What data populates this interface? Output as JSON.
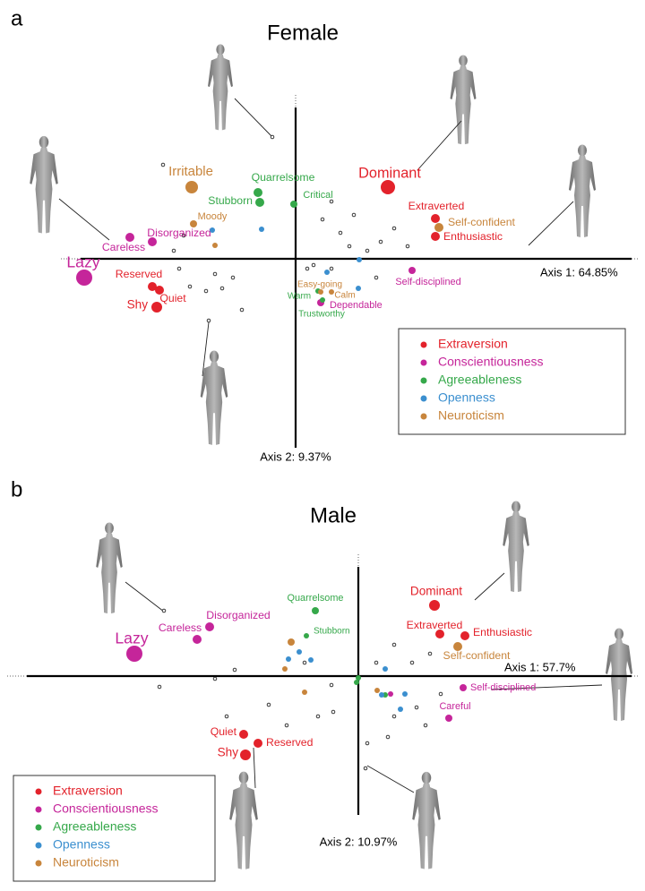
{
  "chart_data": [
    {
      "type": "scatter",
      "panel": "a",
      "title": "Female",
      "xlabel": "Axis 1: 64.85%",
      "ylabel": "Axis 2: 9.37%",
      "xlim": [
        -240,
        375
      ],
      "ylim": [
        -211,
        169
      ],
      "legend": "lower right",
      "series": [
        {
          "name": "Extraversion",
          "color": "#e3222b",
          "x": [
            103,
            156,
            156,
            -160,
            -152,
            -155
          ],
          "y": [
            80,
            45,
            25,
            -31,
            -35,
            -54
          ],
          "sizes": [
            8,
            5,
            5,
            5,
            5,
            6
          ],
          "labels": [
            "Dominant",
            "Extraverted",
            "Enthusiastic",
            "Reserved",
            "Quiet",
            "Shy"
          ]
        },
        {
          "name": "Conscientiousness",
          "color": "#c5259a",
          "x": [
            -236,
            -185,
            -160,
            130,
            28
          ],
          "y": [
            -21,
            24,
            19,
            -13,
            -49
          ],
          "sizes": [
            9,
            5,
            5,
            4,
            4
          ],
          "labels": [
            "Lazy",
            "Careless",
            "Disorganized",
            "Self-disciplined",
            "Dependable"
          ]
        },
        {
          "name": "Agreeableness",
          "color": "#35a84a",
          "x": [
            -42,
            -40,
            -2,
            25,
            30
          ],
          "y": [
            74,
            63,
            61,
            -36,
            -46
          ],
          "sizes": [
            5,
            5,
            4,
            3,
            3
          ],
          "labels": [
            "Quarrelsome",
            "Stubborn",
            "Critical",
            "Warm",
            "Trustworthy"
          ]
        },
        {
          "name": "Openness",
          "color": "#3b8fcf",
          "x": [
            -93,
            -38,
            35,
            70,
            71
          ],
          "y": [
            32,
            33,
            -15,
            -33,
            -1
          ],
          "sizes": [
            3,
            3,
            3,
            3,
            3
          ],
          "labels": [
            null,
            null,
            null,
            null,
            null
          ]
        },
        {
          "name": "Neuroticism",
          "color": "#c8853c",
          "x": [
            -116,
            -114,
            160,
            28,
            40,
            -90
          ],
          "y": [
            80,
            39,
            35,
            -37,
            -37,
            15
          ],
          "sizes": [
            7,
            4,
            5,
            3,
            3,
            3
          ],
          "labels": [
            "Irritable",
            "Moody",
            "Self-confident",
            "Easy-going",
            "Calm",
            null
          ]
        }
      ],
      "unlabeled_points": {
        "x": [
          -26,
          -148,
          -125,
          -130,
          -90,
          -82,
          -60,
          -97,
          -136,
          -118,
          -100,
          -70,
          50,
          60,
          80,
          95,
          110,
          125,
          40,
          20,
          65,
          30,
          40,
          13,
          90
        ],
        "y": [
          136,
          105,
          26,
          -11,
          -17,
          -33,
          -57,
          -69,
          9,
          -31,
          -36,
          -21,
          29,
          14,
          9,
          19,
          34,
          14,
          -11,
          -7,
          49,
          44,
          64,
          -11,
          -21
        ]
      }
    },
    {
      "type": "scatter",
      "panel": "b",
      "title": "Male",
      "xlabel": "Axis 1: 57.7%",
      "ylabel": "Axis 2: 10.97%",
      "xlim": [
        -370,
        305
      ],
      "ylim": [
        -155,
        122
      ],
      "legend": "lower left",
      "series": [
        {
          "name": "Extraversion",
          "color": "#e3222b",
          "x": [
            85,
            91,
            119,
            -128,
            -112,
            -126
          ],
          "y": [
            79,
            47,
            45,
            -65,
            -75,
            -88
          ],
          "sizes": [
            6,
            5,
            5,
            5,
            5,
            6
          ],
          "labels": [
            "Dominant",
            "Extraverted",
            "Enthusiastic",
            "Quiet",
            "Reserved",
            "Shy"
          ]
        },
        {
          "name": "Conscientiousness",
          "color": "#c5259a",
          "x": [
            -250,
            -180,
            -166,
            117,
            101,
            36
          ],
          "y": [
            25,
            41,
            55,
            -13,
            -47,
            -20
          ],
          "sizes": [
            9,
            5,
            5,
            4,
            4,
            3
          ],
          "labels": [
            "Lazy",
            "Careless",
            "Disorganized",
            "Self-disciplined",
            "Careful",
            null
          ]
        },
        {
          "name": "Agreeableness",
          "color": "#35a84a",
          "x": [
            -48,
            -58,
            0,
            30,
            -2
          ],
          "y": [
            73,
            45,
            -2,
            -21,
            -7
          ],
          "sizes": [
            4,
            3,
            3,
            3,
            3
          ],
          "labels": [
            "Quarrelsome",
            "Stubborn",
            null,
            null,
            null
          ]
        },
        {
          "name": "Openness",
          "color": "#3b8fcf",
          "x": [
            -66,
            -53,
            30,
            52,
            47,
            26,
            -78
          ],
          "y": [
            27,
            18,
            8,
            -20,
            -37,
            -21,
            19
          ],
          "sizes": [
            3,
            3,
            3,
            3,
            3,
            3,
            3
          ],
          "labels": [
            null,
            null,
            null,
            null,
            null,
            null,
            null
          ]
        },
        {
          "name": "Neuroticism",
          "color": "#c8853c",
          "x": [
            111,
            -75,
            -82,
            -60,
            21
          ],
          "y": [
            33,
            38,
            8,
            -18,
            -16
          ],
          "sizes": [
            5,
            4,
            3,
            3,
            3
          ],
          "labels": [
            "Self-confident",
            null,
            null,
            null,
            null
          ]
        }
      ],
      "unlabeled_points": {
        "x": [
          -217,
          -222,
          -160,
          -138,
          -100,
          -147,
          -80,
          -28,
          20,
          40,
          60,
          80,
          10,
          33,
          40,
          65,
          75,
          92,
          8,
          -60,
          -30,
          -45
        ],
        "y": [
          73,
          -12,
          -3,
          7,
          -32,
          -45,
          -55,
          -40,
          15,
          35,
          15,
          25,
          -75,
          -68,
          -45,
          -35,
          -55,
          -20,
          -103,
          15,
          -10,
          -45
        ]
      }
    }
  ]
}
